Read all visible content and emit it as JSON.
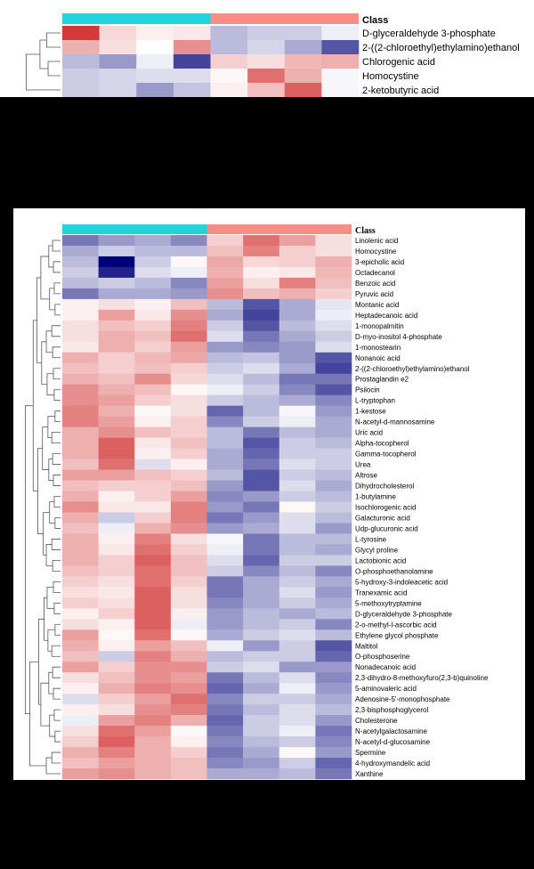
{
  "chart_data": [
    {
      "type": "heatmap",
      "legend_title": "Class",
      "groups": [
        {
          "color": "#22d3dd",
          "columns": 4
        },
        {
          "color": "#fa8c86",
          "columns": 4
        }
      ],
      "scale": {
        "low": "#00007a",
        "mid": "#ffffff",
        "high": "#cc1010",
        "min": -3,
        "max": 3
      },
      "rows": [
        "D-glyceraldehyde 3-phosphate",
        "2-((2-chloroethyl)ethylamino)ethanol",
        "Chlorogenic acid",
        "Homocystine",
        "2-ketobutyric acid"
      ],
      "values": [
        [
          2.5,
          0.5,
          0.2,
          0.3,
          -0.8,
          -0.6,
          -0.6,
          -0.2
        ],
        [
          1.0,
          0.4,
          0.0,
          1.4,
          -0.8,
          -0.5,
          -1.0,
          -2.0
        ],
        [
          -0.8,
          -1.2,
          -0.2,
          -2.2,
          0.6,
          0.4,
          0.9,
          1.0
        ],
        [
          -0.6,
          -0.5,
          -0.4,
          -0.4,
          0.1,
          1.8,
          1.0,
          -0.1
        ],
        [
          -0.6,
          -0.5,
          -1.2,
          -0.7,
          0.2,
          0.8,
          2.0,
          -0.1
        ]
      ]
    },
    {
      "type": "heatmap",
      "legend_title": "Class",
      "groups": [
        {
          "color": "#22d3dd",
          "columns": 4
        },
        {
          "color": "#fa8c86",
          "columns": 4
        }
      ],
      "scale": {
        "low": "#00007a",
        "mid": "#ffffff",
        "high": "#cc1010",
        "min": -3,
        "max": 3
      },
      "rows": [
        "Linolenic acid",
        "Homocystine",
        "3-epicholic acid",
        "Octadecanol",
        "Benzoic acid",
        "Pyruvic acid",
        "Montanic acid",
        "Heptadecanoic acid",
        "1-monopalmitin",
        "D-myo-inositol 4-phosphate",
        "1-monostearin",
        "Nonanoic acid",
        "2-((2-chloroethyl)ethylamino)ethanol",
        "Prostaglandin e2",
        "Psilocin",
        "L-tryptophan",
        "1-kestose",
        "N-acetyl-d-mannosamine",
        "Uric acid",
        "Alpha-tocopherol",
        "Gamma-tocopherol",
        "Urea",
        "Altrose",
        "Dihydrocholesterol",
        "1-butylamine",
        "Isochlorogenic acid",
        "Galacturonic acid",
        "Udp-glucuronic acid",
        "L-tyrosine",
        "Glycyl proline",
        "Lactobionic acid",
        "O-phosphoethanolamine",
        "5-hydroxy-3-indoleacetic acid",
        "Tranexamic acid",
        "5-methoxytryptamine",
        "D-glyceraldehyde 3-phosphate",
        "2-o-methyl-l-ascorbic acid",
        "Ethylene glycol phosphate",
        "Maltitol",
        "O-phosphoserine",
        "Nonadecanoic acid",
        "2,3-dihydro-8-methoxyfuro(2,3-b)quinoline",
        "5-aminovaleric acid",
        "Adenosine-5'-monophosphate",
        "2,3-bisphosphoglycerol",
        "Cholesterone",
        "N-acetylgalactosamine",
        "N-acetyl-d-glucosamine",
        "Spermine",
        "4-hydroxymandelic acid",
        "Xanthine"
      ],
      "values": [
        [
          -1.6,
          -1.2,
          -1.0,
          -1.4,
          0.6,
          1.8,
          1.2,
          0.4
        ],
        [
          -1.0,
          -0.6,
          -0.8,
          -0.8,
          0.8,
          1.6,
          0.6,
          0.4
        ],
        [
          -0.8,
          -3.0,
          -0.6,
          0.1,
          1.1,
          0.5,
          0.6,
          1.0
        ],
        [
          -0.6,
          -2.6,
          -0.4,
          -0.2,
          1.0,
          0.2,
          0.3,
          0.9
        ],
        [
          -0.8,
          -0.6,
          -0.8,
          -1.4,
          1.2,
          0.4,
          1.6,
          0.8
        ],
        [
          -1.6,
          -1.0,
          -1.0,
          -1.2,
          1.4,
          0.8,
          1.0,
          0.6
        ],
        [
          0.2,
          0.4,
          0.2,
          0.8,
          -0.8,
          -2.0,
          -1.0,
          -0.3
        ],
        [
          0.2,
          1.2,
          0.3,
          1.4,
          -1.0,
          -2.2,
          -1.0,
          -0.2
        ],
        [
          0.4,
          0.8,
          0.6,
          1.6,
          -0.6,
          -2.0,
          -0.8,
          -0.4
        ],
        [
          0.4,
          1.0,
          0.8,
          1.8,
          -0.4,
          -1.6,
          -1.0,
          -0.6
        ],
        [
          0.3,
          1.0,
          0.6,
          1.2,
          -1.2,
          -1.4,
          -1.2,
          -0.4
        ],
        [
          1.0,
          0.6,
          0.9,
          1.1,
          -0.8,
          -0.7,
          -1.2,
          -2.0
        ],
        [
          0.8,
          0.6,
          0.8,
          0.6,
          -0.6,
          -0.4,
          -1.0,
          -2.2
        ],
        [
          1.0,
          0.8,
          1.4,
          0.5,
          -0.4,
          -0.8,
          -1.6,
          -1.6
        ],
        [
          1.4,
          1.0,
          0.8,
          0.1,
          -0.2,
          -0.6,
          -1.4,
          -2.0
        ],
        [
          1.4,
          1.2,
          0.6,
          0.4,
          -0.6,
          -0.8,
          -1.0,
          -1.4
        ],
        [
          1.6,
          1.0,
          0.1,
          0.4,
          -1.8,
          -0.8,
          -0.1,
          -1.2
        ],
        [
          1.6,
          1.2,
          0.2,
          0.6,
          -1.4,
          -0.6,
          -0.2,
          -1.0
        ],
        [
          1.0,
          1.4,
          0.8,
          0.6,
          -0.8,
          -1.6,
          -0.8,
          -1.0
        ],
        [
          1.0,
          2.0,
          0.3,
          0.8,
          -0.8,
          -2.0,
          -0.6,
          -0.8
        ],
        [
          1.0,
          2.0,
          0.2,
          0.6,
          -1.0,
          -1.8,
          -0.6,
          -0.6
        ],
        [
          0.8,
          1.8,
          -0.4,
          0.2,
          -1.0,
          -1.6,
          -0.4,
          -0.6
        ],
        [
          1.2,
          1.2,
          0.8,
          0.6,
          -0.8,
          -2.0,
          -0.6,
          -0.8
        ],
        [
          0.8,
          0.6,
          0.6,
          0.8,
          -1.2,
          -2.0,
          -0.4,
          -1.0
        ],
        [
          1.0,
          0.2,
          0.6,
          1.2,
          -1.4,
          -1.2,
          -0.6,
          -0.8
        ],
        [
          1.4,
          0.3,
          0.3,
          1.6,
          -1.2,
          -1.6,
          0.1,
          -0.6
        ],
        [
          1.0,
          -0.6,
          0.6,
          1.6,
          -1.6,
          -1.2,
          -0.4,
          -0.8
        ],
        [
          0.8,
          -0.2,
          1.0,
          1.4,
          -1.2,
          -1.0,
          -0.4,
          -1.2
        ],
        [
          1.0,
          0.2,
          1.6,
          0.4,
          -0.1,
          -1.6,
          -0.8,
          -0.8
        ],
        [
          1.0,
          0.3,
          1.8,
          0.6,
          -0.2,
          -1.6,
          -0.8,
          -1.0
        ],
        [
          1.0,
          0.6,
          2.0,
          0.8,
          -0.4,
          -1.8,
          -0.6,
          -0.6
        ],
        [
          0.8,
          0.6,
          1.8,
          0.8,
          -0.6,
          -1.4,
          -0.8,
          -1.4
        ],
        [
          0.6,
          0.4,
          1.8,
          0.6,
          -1.6,
          -1.0,
          -0.6,
          -1.0
        ],
        [
          0.4,
          0.3,
          2.0,
          0.4,
          -1.6,
          -1.0,
          -0.4,
          -1.2
        ],
        [
          0.6,
          0.4,
          2.0,
          0.4,
          -1.4,
          -1.0,
          -0.6,
          -1.0
        ],
        [
          0.2,
          0.6,
          2.0,
          0.2,
          -1.2,
          -0.8,
          -1.0,
          -0.8
        ],
        [
          0.4,
          0.2,
          2.0,
          -0.2,
          -1.2,
          -0.8,
          -0.6,
          -1.4
        ],
        [
          1.2,
          0.1,
          1.8,
          0.1,
          -1.0,
          -0.6,
          -0.4,
          -0.8
        ],
        [
          1.0,
          0.2,
          1.2,
          0.8,
          -0.2,
          -1.2,
          -0.6,
          -2.0
        ],
        [
          0.8,
          -0.6,
          1.6,
          1.0,
          -0.8,
          -0.6,
          -0.6,
          -1.8
        ],
        [
          1.2,
          0.6,
          1.4,
          1.4,
          -0.6,
          -0.4,
          -1.2,
          -1.2
        ],
        [
          0.4,
          0.8,
          1.4,
          1.2,
          -1.6,
          -0.8,
          -0.4,
          -1.4
        ],
        [
          0.2,
          1.0,
          1.6,
          1.4,
          -1.8,
          -1.0,
          -0.2,
          -1.2
        ],
        [
          -0.4,
          0.6,
          1.2,
          1.8,
          -1.4,
          -0.6,
          -0.6,
          -1.0
        ],
        [
          0.2,
          0.4,
          1.4,
          1.6,
          -1.6,
          -0.8,
          -0.4,
          -0.8
        ],
        [
          -0.2,
          1.2,
          1.6,
          1.0,
          -1.8,
          -0.6,
          -0.4,
          -1.2
        ],
        [
          0.4,
          1.8,
          1.2,
          0.1,
          -1.6,
          -0.6,
          -0.2,
          -1.6
        ],
        [
          0.6,
          2.0,
          1.0,
          0.2,
          -1.4,
          -0.8,
          -0.6,
          -1.4
        ],
        [
          1.0,
          1.6,
          1.0,
          0.6,
          -1.6,
          -1.0,
          0.1,
          -1.2
        ],
        [
          0.8,
          1.2,
          1.0,
          0.8,
          -1.4,
          -1.2,
          -0.6,
          -1.8
        ],
        [
          1.2,
          1.4,
          1.0,
          0.8,
          -1.0,
          -1.0,
          -0.8,
          -1.6
        ]
      ]
    }
  ]
}
